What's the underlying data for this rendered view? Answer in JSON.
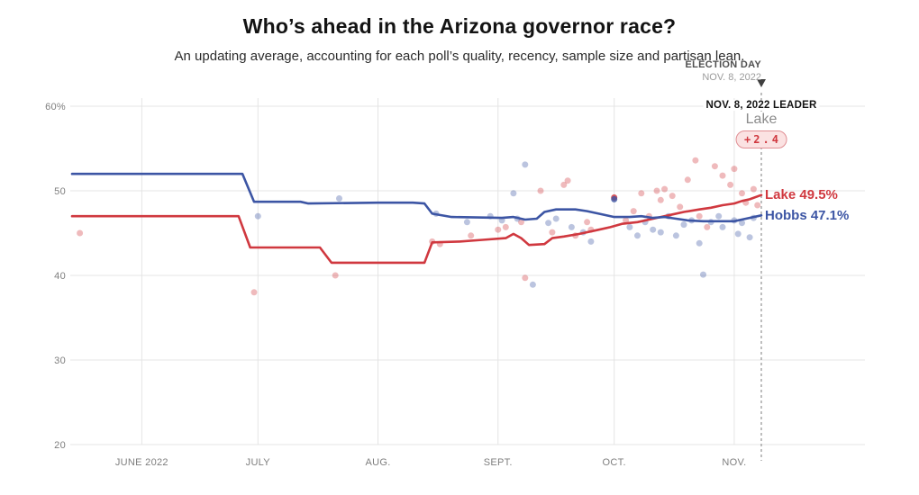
{
  "colors": {
    "lake": "#d0383f",
    "hobbs": "#3c55a4",
    "grid": "#e4e4e4",
    "axis_text": "#7e7e7e",
    "election_line": "#a3a3a3",
    "margin_pill_bg": "#fbe2e2",
    "margin_pill_border": "#e08e93"
  },
  "chart_data": {
    "type": "line",
    "title": "Who’s ahead in the Arizona governor race?",
    "subtitle": "An updating average, accounting for each poll’s quality, recency, sample size and partisan lean.",
    "xlabel": "",
    "ylabel": "",
    "ylim": [
      20,
      60
    ],
    "x_domain": [
      "2022-05-14",
      "2022-11-08"
    ],
    "election_date": "2022-11-08",
    "grid": true,
    "legend": "line-end-labels",
    "y_ticks": [
      {
        "value": 60,
        "label": "60%"
      },
      {
        "value": 50,
        "label": "50"
      },
      {
        "value": 40,
        "label": "40"
      },
      {
        "value": 30,
        "label": "30"
      },
      {
        "value": 20,
        "label": "20"
      }
    ],
    "x_ticks": [
      {
        "date": "2022-06-01",
        "label": "JUNE 2022"
      },
      {
        "date": "2022-07-01",
        "label": "JULY"
      },
      {
        "date": "2022-08-01",
        "label": "AUG."
      },
      {
        "date": "2022-09-01",
        "label": "SEPT."
      },
      {
        "date": "2022-10-01",
        "label": "OCT."
      },
      {
        "date": "2022-11-01",
        "label": "NOV."
      }
    ],
    "annotations": {
      "election_day_label": "ELECTION DAY",
      "election_day_date": "NOV. 8, 2022",
      "leader_label": "NOV. 8, 2022 LEADER",
      "leader_name": "Lake",
      "leader_margin": "+2.4"
    },
    "series": [
      {
        "name": "Lake",
        "color_key": "lake",
        "end_value": 49.5,
        "end_label": "Lake 49.5%",
        "points": [
          [
            "2022-05-14",
            47.0
          ],
          [
            "2022-06-26",
            47.0
          ],
          [
            "2022-06-29",
            43.3
          ],
          [
            "2022-07-17",
            43.3
          ],
          [
            "2022-07-20",
            41.5
          ],
          [
            "2022-08-13",
            41.5
          ],
          [
            "2022-08-15",
            43.9
          ],
          [
            "2022-08-22",
            44.0
          ],
          [
            "2022-08-28",
            44.2
          ],
          [
            "2022-09-03",
            44.4
          ],
          [
            "2022-09-05",
            44.9
          ],
          [
            "2022-09-07",
            44.4
          ],
          [
            "2022-09-09",
            43.6
          ],
          [
            "2022-09-13",
            43.7
          ],
          [
            "2022-09-15",
            44.4
          ],
          [
            "2022-09-18",
            44.6
          ],
          [
            "2022-09-22",
            44.9
          ],
          [
            "2022-09-26",
            45.3
          ],
          [
            "2022-09-30",
            45.7
          ],
          [
            "2022-10-03",
            46.1
          ],
          [
            "2022-10-07",
            46.3
          ],
          [
            "2022-10-10",
            46.6
          ],
          [
            "2022-10-13",
            46.9
          ],
          [
            "2022-10-16",
            47.2
          ],
          [
            "2022-10-19",
            47.5
          ],
          [
            "2022-10-23",
            47.8
          ],
          [
            "2022-10-26",
            48.0
          ],
          [
            "2022-10-29",
            48.3
          ],
          [
            "2022-11-01",
            48.5
          ],
          [
            "2022-11-03",
            48.8
          ],
          [
            "2022-11-05",
            49.0
          ],
          [
            "2022-11-08",
            49.5
          ]
        ]
      },
      {
        "name": "Hobbs",
        "color_key": "hobbs",
        "end_value": 47.1,
        "end_label": "Hobbs 47.1%",
        "points": [
          [
            "2022-05-14",
            52.0
          ],
          [
            "2022-06-27",
            52.0
          ],
          [
            "2022-06-30",
            48.7
          ],
          [
            "2022-07-12",
            48.7
          ],
          [
            "2022-07-14",
            48.5
          ],
          [
            "2022-08-01",
            48.6
          ],
          [
            "2022-08-10",
            48.6
          ],
          [
            "2022-08-13",
            48.5
          ],
          [
            "2022-08-15",
            47.3
          ],
          [
            "2022-08-20",
            46.9
          ],
          [
            "2022-09-02",
            46.8
          ],
          [
            "2022-09-05",
            46.9
          ],
          [
            "2022-09-08",
            46.6
          ],
          [
            "2022-09-11",
            46.7
          ],
          [
            "2022-09-13",
            47.5
          ],
          [
            "2022-09-16",
            47.8
          ],
          [
            "2022-09-21",
            47.8
          ],
          [
            "2022-09-24",
            47.6
          ],
          [
            "2022-09-27",
            47.3
          ],
          [
            "2022-10-01",
            46.9
          ],
          [
            "2022-10-05",
            46.9
          ],
          [
            "2022-10-08",
            47.0
          ],
          [
            "2022-10-11",
            46.8
          ],
          [
            "2022-10-14",
            46.9
          ],
          [
            "2022-10-17",
            46.7
          ],
          [
            "2022-10-20",
            46.5
          ],
          [
            "2022-10-24",
            46.4
          ],
          [
            "2022-10-28",
            46.4
          ],
          [
            "2022-11-01",
            46.4
          ],
          [
            "2022-11-04",
            46.7
          ],
          [
            "2022-11-08",
            47.1
          ]
        ]
      }
    ],
    "polls": {
      "lake": [
        [
          "2022-05-16",
          45.0
        ],
        [
          "2022-06-30",
          38.0
        ],
        [
          "2022-07-21",
          40.0
        ],
        [
          "2022-08-15",
          44.0
        ],
        [
          "2022-08-17",
          43.7
        ],
        [
          "2022-08-25",
          44.7
        ],
        [
          "2022-09-01",
          45.4
        ],
        [
          "2022-09-03",
          45.7
        ],
        [
          "2022-09-07",
          46.3
        ],
        [
          "2022-09-08",
          39.7
        ],
        [
          "2022-09-12",
          50.0
        ],
        [
          "2022-09-15",
          45.1
        ],
        [
          "2022-09-18",
          50.7
        ],
        [
          "2022-09-19",
          51.2
        ],
        [
          "2022-09-21",
          44.7
        ],
        [
          "2022-09-24",
          46.3
        ],
        [
          "2022-09-25",
          45.4
        ],
        [
          "2022-10-01",
          49.2,
          0.85
        ],
        [
          "2022-10-04",
          46.5
        ],
        [
          "2022-10-06",
          47.6
        ],
        [
          "2022-10-08",
          49.7
        ],
        [
          "2022-10-10",
          47.0
        ],
        [
          "2022-10-12",
          50.0
        ],
        [
          "2022-10-13",
          48.9
        ],
        [
          "2022-10-14",
          50.2
        ],
        [
          "2022-10-16",
          49.4
        ],
        [
          "2022-10-18",
          48.1
        ],
        [
          "2022-10-20",
          51.3
        ],
        [
          "2022-10-22",
          53.6
        ],
        [
          "2022-10-23",
          47.0
        ],
        [
          "2022-10-25",
          45.7
        ],
        [
          "2022-10-27",
          52.9
        ],
        [
          "2022-10-29",
          51.8
        ],
        [
          "2022-10-31",
          50.7
        ],
        [
          "2022-11-01",
          52.6
        ],
        [
          "2022-11-03",
          49.7
        ],
        [
          "2022-11-04",
          48.6
        ],
        [
          "2022-11-06",
          50.2
        ],
        [
          "2022-11-07",
          48.3
        ]
      ],
      "hobbs": [
        [
          "2022-07-01",
          47.0
        ],
        [
          "2022-07-22",
          49.1
        ],
        [
          "2022-08-16",
          47.3
        ],
        [
          "2022-08-24",
          46.3
        ],
        [
          "2022-08-30",
          47.0
        ],
        [
          "2022-09-02",
          46.5
        ],
        [
          "2022-09-05",
          49.7
        ],
        [
          "2022-09-06",
          46.7
        ],
        [
          "2022-09-08",
          53.1
        ],
        [
          "2022-09-10",
          38.9
        ],
        [
          "2022-09-14",
          46.2
        ],
        [
          "2022-09-16",
          46.7
        ],
        [
          "2022-09-20",
          45.7
        ],
        [
          "2022-09-23",
          45.1
        ],
        [
          "2022-09-25",
          44.0
        ],
        [
          "2022-10-01",
          49.0,
          0.8
        ],
        [
          "2022-10-05",
          45.7
        ],
        [
          "2022-10-07",
          44.7
        ],
        [
          "2022-10-09",
          46.3
        ],
        [
          "2022-10-11",
          45.4
        ],
        [
          "2022-10-13",
          45.1
        ],
        [
          "2022-10-15",
          47.0
        ],
        [
          "2022-10-17",
          44.7
        ],
        [
          "2022-10-19",
          46.0
        ],
        [
          "2022-10-21",
          46.5
        ],
        [
          "2022-10-23",
          43.8
        ],
        [
          "2022-10-24",
          40.1
        ],
        [
          "2022-10-26",
          46.3
        ],
        [
          "2022-10-28",
          47.0
        ],
        [
          "2022-10-29",
          45.7
        ],
        [
          "2022-11-01",
          46.5
        ],
        [
          "2022-11-02",
          44.9
        ],
        [
          "2022-11-03",
          46.2
        ],
        [
          "2022-11-05",
          44.5
        ],
        [
          "2022-11-06",
          46.8
        ]
      ]
    }
  }
}
